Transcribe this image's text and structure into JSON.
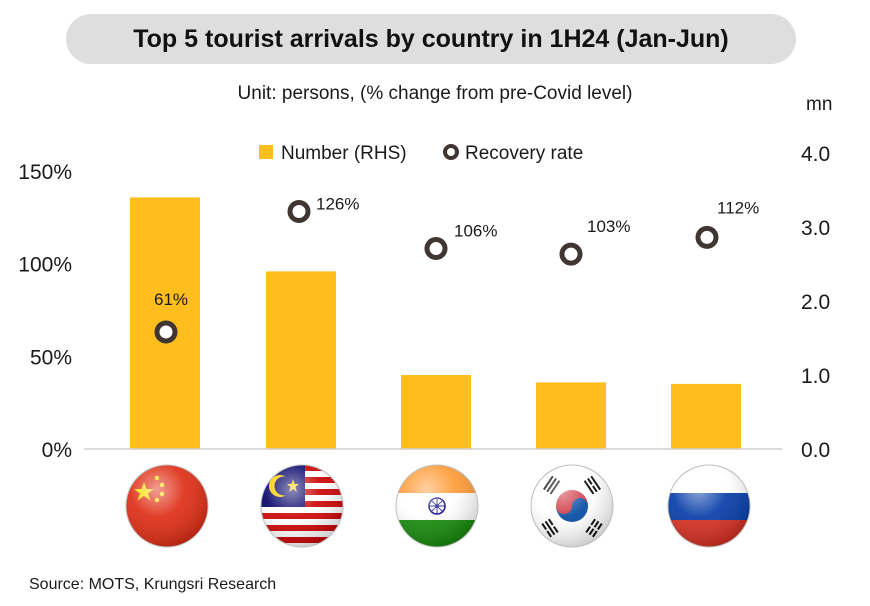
{
  "title": "Top 5 tourist arrivals by country in 1H24 (Jan-Jun)",
  "subtitle": "Unit: persons, (% change from pre-Covid level)",
  "rhs_unit": "mn",
  "source": "Source: MOTS, Krungsri Research",
  "colors": {
    "bar": "#FDBE1E",
    "marker_ring": "#3f3533",
    "title_bg": "#dedede"
  },
  "chart_data": {
    "type": "bar",
    "categories": [
      "China",
      "Malaysia",
      "India",
      "South Korea",
      "Russia"
    ],
    "flag_icons": [
      "china-flag-icon",
      "malaysia-flag-icon",
      "india-flag-icon",
      "south-korea-flag-icon",
      "russia-flag-icon"
    ],
    "series": [
      {
        "name": "Number (RHS)",
        "type": "bar",
        "axis": "right",
        "values": [
          3.4,
          2.4,
          1.0,
          0.9,
          0.88
        ]
      },
      {
        "name": "Recovery rate",
        "type": "scatter",
        "axis": "left",
        "values": [
          61,
          126,
          106,
          103,
          112
        ],
        "labels": [
          "61%",
          "126%",
          "106%",
          "103%",
          "112%"
        ]
      }
    ],
    "left_axis": {
      "ticks": [
        "0%",
        "50%",
        "100%",
        "150%"
      ],
      "range": [
        0,
        150
      ]
    },
    "right_axis": {
      "ticks": [
        "0.0",
        "1.0",
        "2.0",
        "3.0",
        "4.0"
      ],
      "range": [
        0,
        4.0
      ]
    },
    "legend": {
      "placement": "top-center"
    },
    "grid": false
  }
}
